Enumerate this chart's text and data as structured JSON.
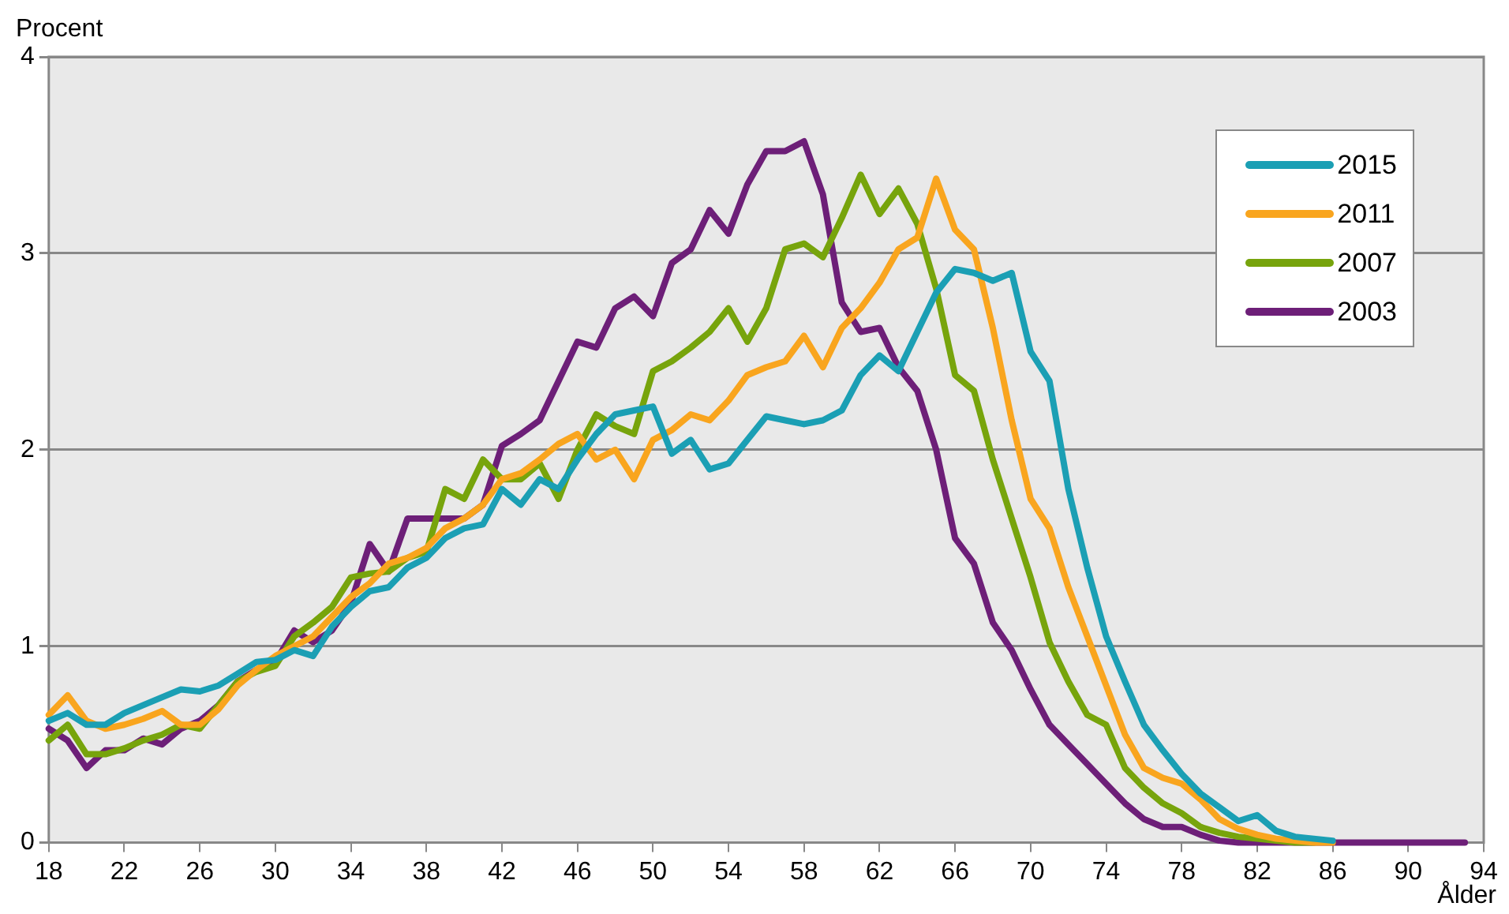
{
  "chart_data": {
    "type": "line",
    "xlabel": "Ålder",
    "ylabel": "Procent",
    "x": [
      18,
      19,
      20,
      21,
      22,
      23,
      24,
      25,
      26,
      27,
      28,
      29,
      30,
      31,
      32,
      33,
      34,
      35,
      36,
      37,
      38,
      39,
      40,
      41,
      42,
      43,
      44,
      45,
      46,
      47,
      48,
      49,
      50,
      51,
      52,
      53,
      54,
      55,
      56,
      57,
      58,
      59,
      60,
      61,
      62,
      63,
      64,
      65,
      66,
      67,
      68,
      69,
      70,
      71,
      72,
      73,
      74,
      75,
      76,
      77,
      78,
      79,
      80,
      81,
      82,
      83,
      84,
      85,
      86,
      87,
      88,
      89,
      90,
      91,
      92,
      93
    ],
    "xlim": [
      18,
      94
    ],
    "xticks": [
      18,
      22,
      26,
      30,
      34,
      38,
      42,
      46,
      50,
      54,
      58,
      62,
      66,
      70,
      74,
      78,
      82,
      86,
      90,
      94
    ],
    "ylim": [
      0,
      4
    ],
    "yticks": [
      0,
      1,
      2,
      3,
      4
    ],
    "grid": "y",
    "legend": "top right",
    "marker": "none",
    "line_style": "solid",
    "series": [
      {
        "name": "2015",
        "color": "#1b9fb4",
        "values": [
          0.62,
          0.66,
          0.6,
          0.6,
          0.66,
          0.7,
          0.74,
          0.78,
          0.77,
          0.8,
          0.86,
          0.92,
          0.93,
          0.98,
          0.95,
          1.1,
          1.2,
          1.28,
          1.3,
          1.4,
          1.45,
          1.55,
          1.6,
          1.62,
          1.8,
          1.72,
          1.85,
          1.8,
          1.95,
          2.08,
          2.18,
          2.2,
          2.22,
          1.98,
          2.05,
          1.9,
          1.93,
          2.05,
          2.17,
          2.15,
          2.13,
          2.15,
          2.2,
          2.38,
          2.48,
          2.4,
          2.6,
          2.8,
          2.92,
          2.9,
          2.86,
          2.9,
          2.5,
          2.35,
          1.8,
          1.4,
          1.05,
          0.82,
          0.6,
          0.47,
          0.35,
          0.25,
          0.18,
          0.11,
          0.14,
          0.06,
          0.03,
          0.02,
          0.01,
          null,
          null,
          null,
          null,
          null,
          null,
          null
        ]
      },
      {
        "name": "2011",
        "color": "#f9a51e",
        "values": [
          0.65,
          0.75,
          0.62,
          0.58,
          0.6,
          0.63,
          0.67,
          0.6,
          0.6,
          0.68,
          0.8,
          0.88,
          0.95,
          1.0,
          1.05,
          1.15,
          1.25,
          1.32,
          1.42,
          1.45,
          1.5,
          1.6,
          1.65,
          1.72,
          1.85,
          1.88,
          1.95,
          2.03,
          2.08,
          1.95,
          2.0,
          1.85,
          2.05,
          2.1,
          2.18,
          2.15,
          2.25,
          2.38,
          2.42,
          2.45,
          2.58,
          2.42,
          2.62,
          2.72,
          2.85,
          3.02,
          3.08,
          3.38,
          3.12,
          3.02,
          2.62,
          2.15,
          1.75,
          1.6,
          1.3,
          1.05,
          0.8,
          0.55,
          0.38,
          0.33,
          0.3,
          0.22,
          0.12,
          0.07,
          0.04,
          0.02,
          0.01,
          0,
          0,
          null,
          null,
          null,
          null,
          null,
          null,
          null
        ]
      },
      {
        "name": "2007",
        "color": "#77a40c",
        "values": [
          0.52,
          0.6,
          0.45,
          0.45,
          0.48,
          0.52,
          0.55,
          0.6,
          0.58,
          0.7,
          0.82,
          0.87,
          0.9,
          1.05,
          1.12,
          1.2,
          1.35,
          1.37,
          1.38,
          1.45,
          1.48,
          1.8,
          1.75,
          1.95,
          1.85,
          1.85,
          1.93,
          1.75,
          2.0,
          2.18,
          2.12,
          2.08,
          2.4,
          2.45,
          2.52,
          2.6,
          2.72,
          2.55,
          2.72,
          3.02,
          3.05,
          2.98,
          3.18,
          3.4,
          3.2,
          3.33,
          3.15,
          2.82,
          2.38,
          2.3,
          1.95,
          1.65,
          1.35,
          1.02,
          0.82,
          0.65,
          0.6,
          0.38,
          0.28,
          0.2,
          0.15,
          0.08,
          0.05,
          0.03,
          0.02,
          0.01,
          0,
          0,
          null,
          null,
          null,
          null,
          null,
          null,
          null,
          null
        ]
      },
      {
        "name": "2003",
        "color": "#6d1f78",
        "values": [
          0.58,
          0.52,
          0.38,
          0.47,
          0.47,
          0.53,
          0.5,
          0.58,
          0.62,
          0.7,
          0.82,
          0.88,
          0.92,
          1.08,
          1.02,
          1.08,
          1.22,
          1.52,
          1.38,
          1.65,
          1.65,
          1.65,
          1.65,
          1.72,
          2.02,
          2.08,
          2.15,
          2.35,
          2.55,
          2.52,
          2.72,
          2.78,
          2.68,
          2.95,
          3.02,
          3.22,
          3.1,
          3.35,
          3.52,
          3.52,
          3.57,
          3.3,
          2.75,
          2.6,
          2.62,
          2.42,
          2.3,
          2.0,
          1.55,
          1.42,
          1.12,
          0.98,
          0.78,
          0.6,
          0.5,
          0.4,
          0.3,
          0.2,
          0.12,
          0.08,
          0.08,
          0.04,
          0.01,
          0,
          0,
          0,
          0,
          0,
          0,
          0,
          0,
          0,
          0,
          0,
          0,
          0
        ]
      }
    ]
  }
}
